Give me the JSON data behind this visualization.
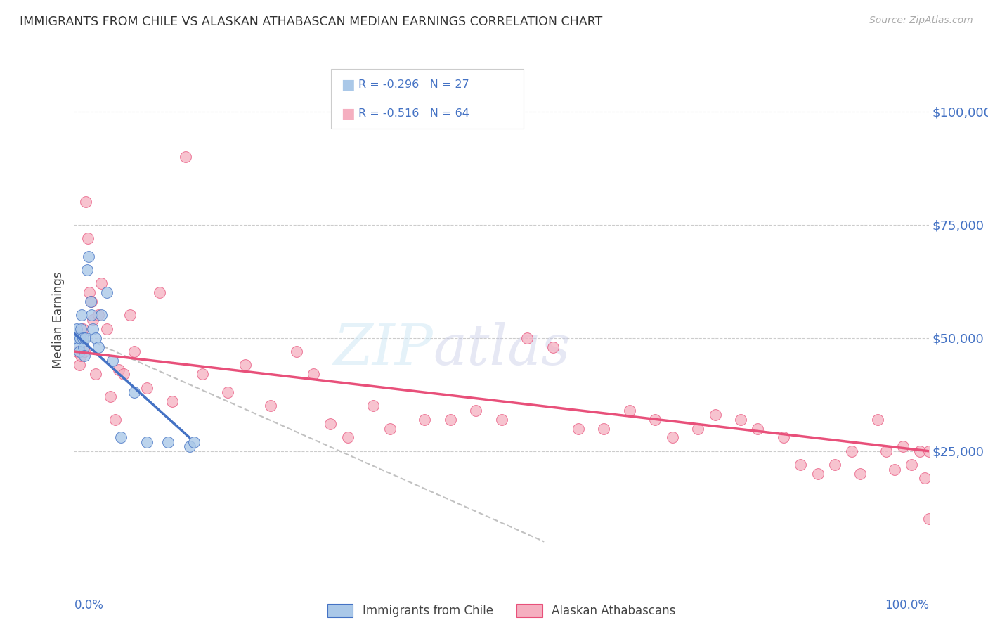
{
  "title": "IMMIGRANTS FROM CHILE VS ALASKAN ATHABASCAN MEDIAN EARNINGS CORRELATION CHART",
  "source": "Source: ZipAtlas.com",
  "ylabel": "Median Earnings",
  "y_ticks": [
    0,
    25000,
    50000,
    75000,
    100000
  ],
  "y_tick_labels": [
    "",
    "$25,000",
    "$50,000",
    "$75,000",
    "$100,000"
  ],
  "x_range": [
    0,
    100
  ],
  "y_range": [
    0,
    108000
  ],
  "label1": "Immigrants from Chile",
  "label2": "Alaskan Athabascans",
  "color1": "#aac8e8",
  "color2": "#f5afc0",
  "line_color1": "#4472c4",
  "line_color2": "#e8507a",
  "text_color": "#4472c4",
  "scatter1_x": [
    0.3,
    0.4,
    0.5,
    0.6,
    0.7,
    0.8,
    0.9,
    1.0,
    1.1,
    1.2,
    1.3,
    1.5,
    1.7,
    1.9,
    2.0,
    2.2,
    2.5,
    2.8,
    3.2,
    3.8,
    4.5,
    5.5,
    7.0,
    8.5,
    11.0,
    13.5,
    14.0
  ],
  "scatter1_y": [
    52000,
    50000,
    48000,
    47000,
    50000,
    52000,
    55000,
    50000,
    48000,
    46000,
    50000,
    65000,
    68000,
    58000,
    55000,
    52000,
    50000,
    48000,
    55000,
    60000,
    45000,
    28000,
    38000,
    27000,
    27000,
    26000,
    27000
  ],
  "scatter2_x": [
    0.4,
    0.6,
    0.8,
    1.0,
    1.2,
    1.4,
    1.6,
    1.8,
    2.0,
    2.2,
    2.5,
    2.8,
    3.2,
    3.8,
    4.2,
    4.8,
    5.2,
    5.8,
    6.5,
    7.0,
    8.5,
    10.0,
    11.5,
    13.0,
    15.0,
    18.0,
    20.0,
    23.0,
    26.0,
    28.0,
    30.0,
    32.0,
    35.0,
    37.0,
    41.0,
    44.0,
    47.0,
    50.0,
    53.0,
    56.0,
    59.0,
    62.0,
    65.0,
    68.0,
    70.0,
    73.0,
    75.0,
    78.0,
    80.0,
    83.0,
    85.0,
    87.0,
    89.0,
    91.0,
    92.0,
    94.0,
    95.0,
    96.0,
    97.0,
    98.0,
    99.0,
    99.5,
    100.0,
    100.0
  ],
  "scatter2_y": [
    47000,
    44000,
    46000,
    52000,
    47000,
    80000,
    72000,
    60000,
    58000,
    54000,
    42000,
    55000,
    62000,
    52000,
    37000,
    32000,
    43000,
    42000,
    55000,
    47000,
    39000,
    60000,
    36000,
    90000,
    42000,
    38000,
    44000,
    35000,
    47000,
    42000,
    31000,
    28000,
    35000,
    30000,
    32000,
    32000,
    34000,
    32000,
    50000,
    48000,
    30000,
    30000,
    34000,
    32000,
    28000,
    30000,
    33000,
    32000,
    30000,
    28000,
    22000,
    20000,
    22000,
    25000,
    20000,
    32000,
    25000,
    21000,
    26000,
    22000,
    25000,
    19000,
    10000,
    25000
  ],
  "blue_line_x": [
    0,
    13.5
  ],
  "blue_line_y": [
    51000,
    28000
  ],
  "pink_line_x": [
    0,
    100
  ],
  "pink_line_y": [
    47000,
    25000
  ],
  "dash_line_x": [
    0,
    55
  ],
  "dash_line_y": [
    51000,
    5000
  ]
}
